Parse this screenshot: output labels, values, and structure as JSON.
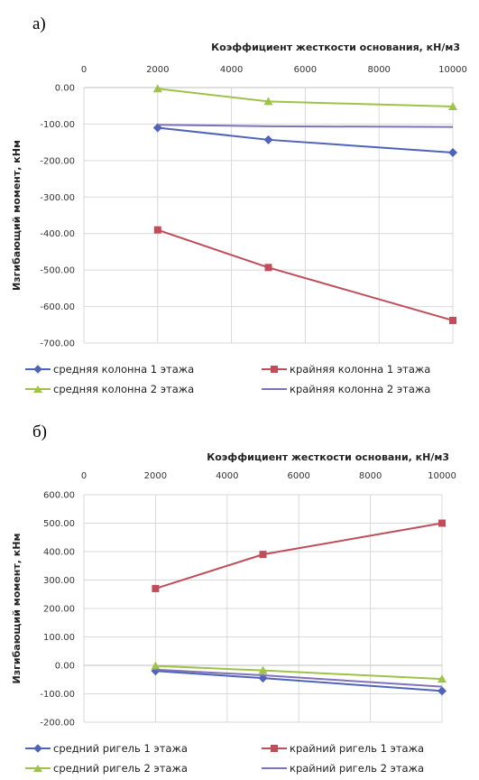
{
  "panels": [
    {
      "label": "а)"
    },
    {
      "label": "б)"
    }
  ],
  "chart_data": [
    {
      "type": "line",
      "title": "",
      "xlabel": "Коэффициент жесткости основания, кН/м3",
      "ylabel": "Изгибающий момент, кНм",
      "x_ticks": [
        "0",
        "2000",
        "4000",
        "6000",
        "8000",
        "10000"
      ],
      "y_ticks": [
        "0.00",
        "-100.00",
        "-200.00",
        "-300.00",
        "-400.00",
        "-500.00",
        "-600.00",
        "-700.00"
      ],
      "xlim": [
        0,
        10000
      ],
      "ylim": [
        -700,
        0
      ],
      "x_axis_position": "top",
      "grid": true,
      "legend_position": "bottom",
      "x": [
        2000,
        5000,
        10000
      ],
      "series": [
        {
          "name": "средняя колонна 1 этажа",
          "color": "#4f64b8",
          "marker": "diamond",
          "values": [
            -110,
            -143,
            -178
          ]
        },
        {
          "name": "крайняя колонна 1 этажа",
          "color": "#bf4d5a",
          "marker": "square",
          "values": [
            -390,
            -493,
            -638
          ]
        },
        {
          "name": "средняя колонна 2 этажа",
          "color": "#9fc24b",
          "marker": "triangle",
          "values": [
            -3,
            -38,
            -52
          ]
        },
        {
          "name": "крайняя колонна 2 этажа",
          "color": "#7f72b8",
          "marker": "none",
          "values": [
            -102,
            -106,
            -108
          ]
        }
      ]
    },
    {
      "type": "line",
      "title": "",
      "xlabel": "Коэффициент жесткости основани, кН/м3",
      "ylabel": "Изгибающий момент, кНм",
      "x_ticks": [
        "0",
        "2000",
        "4000",
        "6000",
        "8000",
        "10000"
      ],
      "y_ticks": [
        "600.00",
        "500.00",
        "400.00",
        "300.00",
        "200.00",
        "100.00",
        "0.00",
        "-100.00",
        "-200.00"
      ],
      "xlim": [
        0,
        10000
      ],
      "ylim": [
        -200,
        600
      ],
      "x_axis_position": "top",
      "grid": true,
      "legend_position": "bottom",
      "x": [
        2000,
        5000,
        10000
      ],
      "series": [
        {
          "name": "средний ригель 1 этажа",
          "color": "#4f64b8",
          "marker": "diamond",
          "values": [
            -20,
            -45,
            -90
          ]
        },
        {
          "name": "крайний ригель 1 этажа",
          "color": "#bf4d5a",
          "marker": "square",
          "values": [
            270,
            390,
            500
          ]
        },
        {
          "name": "средний ригель 2 этажа",
          "color": "#9fc24b",
          "marker": "triangle",
          "values": [
            -2,
            -18,
            -48
          ]
        },
        {
          "name": "крайний ригель 2 этажа",
          "color": "#7f72b8",
          "marker": "none",
          "values": [
            -15,
            -35,
            -75
          ]
        }
      ]
    }
  ]
}
